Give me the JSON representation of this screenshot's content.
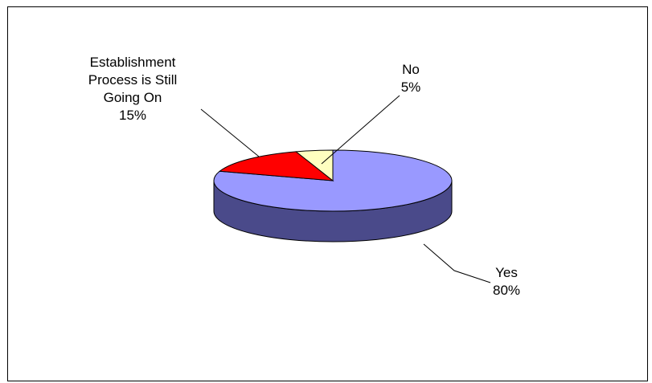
{
  "chart_data": {
    "type": "pie",
    "title": "",
    "style": "3d",
    "categories": [
      "Yes",
      "Establishment Process is Still Going On",
      "No"
    ],
    "values": [
      80,
      15,
      5
    ],
    "colors": [
      "#9999FF",
      "#FF0000",
      "#FFFFC0"
    ],
    "side_colors": [
      "#4A4A8A",
      "#880000",
      "#8C8C60"
    ],
    "data_labels": [
      {
        "lines": [
          "Yes",
          "80%"
        ]
      },
      {
        "lines": [
          "Establishment",
          "Process is Still",
          "Going On",
          "15%"
        ]
      },
      {
        "lines": [
          "No",
          "5%"
        ]
      }
    ],
    "legend": "none"
  }
}
